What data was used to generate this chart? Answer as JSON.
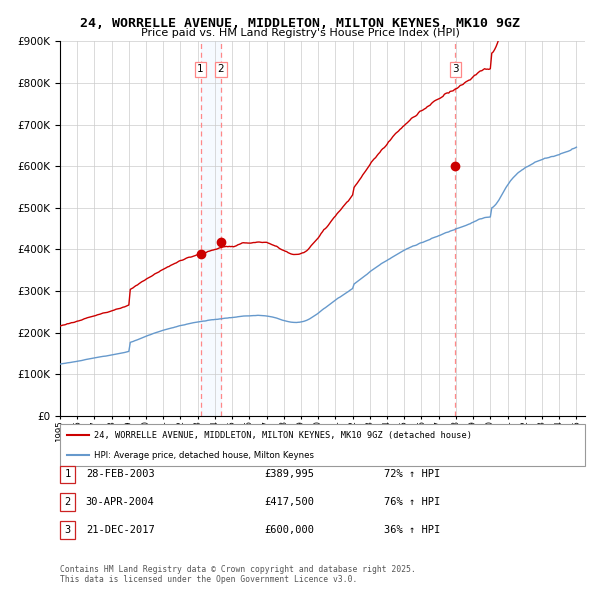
{
  "title": "24, WORRELLE AVENUE, MIDDLETON, MILTON KEYNES, MK10 9GZ",
  "subtitle": "Price paid vs. HM Land Registry's House Price Index (HPI)",
  "legend_line1": "24, WORRELLE AVENUE, MIDDLETON, MILTON KEYNES, MK10 9GZ (detached house)",
  "legend_line2": "HPI: Average price, detached house, Milton Keynes",
  "footer": "Contains HM Land Registry data © Crown copyright and database right 2025.\nThis data is licensed under the Open Government Licence v3.0.",
  "transactions": [
    {
      "num": 1,
      "date": "28-FEB-2003",
      "price": "£389,995",
      "hpi": "72% ↑ HPI"
    },
    {
      "num": 2,
      "date": "30-APR-2004",
      "price": "£417,500",
      "hpi": "76% ↑ HPI"
    },
    {
      "num": 3,
      "date": "21-DEC-2017",
      "price": "£600,000",
      "hpi": "36% ↑ HPI"
    }
  ],
  "sale_dates": [
    2003.163,
    2004.33,
    2017.972
  ],
  "sale_prices": [
    389995,
    417500,
    600000
  ],
  "red_line_color": "#cc0000",
  "blue_line_color": "#6699cc",
  "blue_shade_color": "#ddeeff",
  "vline_color": "#ff8888",
  "ylim": [
    0,
    900000
  ],
  "xlim_start": 1995.0,
  "xlim_end": 2025.5,
  "background_color": "#ffffff",
  "grid_color": "#cccccc"
}
